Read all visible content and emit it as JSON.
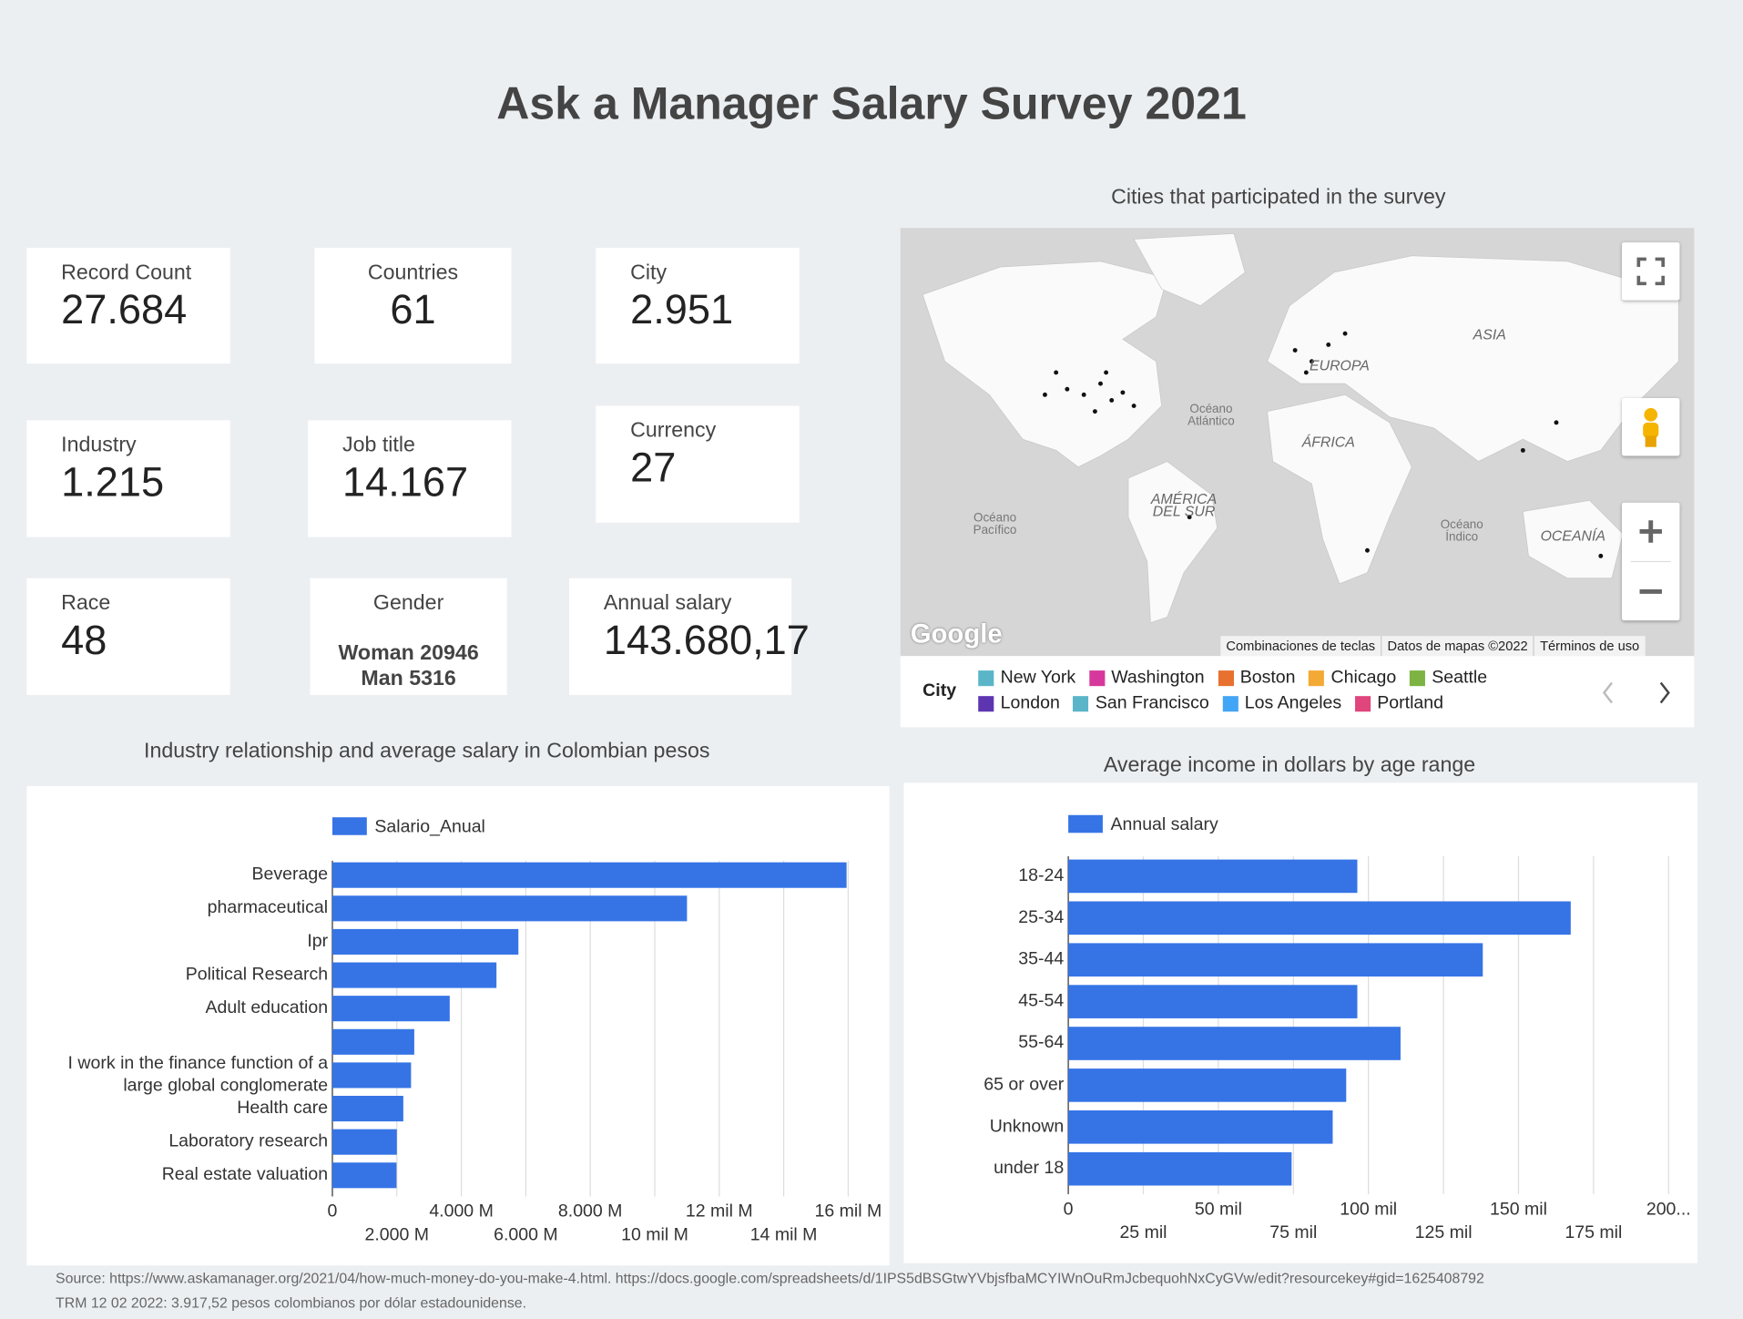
{
  "header": {
    "title": "Ask a Manager Salary Survey 2021"
  },
  "scorecards": [
    {
      "label": "Record Count",
      "value": "27.684"
    },
    {
      "label": "Countries",
      "value": "61"
    },
    {
      "label": "City",
      "value": "2.951"
    },
    {
      "label": "Industry",
      "value": "1.215"
    },
    {
      "label": "Job title",
      "value": "14.167"
    },
    {
      "label": "Currency",
      "value": "27"
    },
    {
      "label": "Race",
      "value": "48"
    },
    {
      "label": "Gender",
      "lines": [
        "Woman 20946",
        "Man 5316"
      ]
    },
    {
      "label": "Annual salary",
      "value": "143.680,17"
    }
  ],
  "map": {
    "title": "Cities that participated in the survey",
    "labels": [
      "ASIA",
      "EUROPA",
      "ÁFRICA",
      "AMÉRICA DEL SUR",
      "Océano Atlántico",
      "Océano Pacífico",
      "Océano Índico",
      "OCEANÍA"
    ],
    "brand": "Google",
    "attribution": [
      "Combinaciones de teclas",
      "Datos de mapas ©2022",
      "Términos de uso"
    ],
    "legend": {
      "title": "City",
      "items": [
        {
          "name": "New York",
          "color": "#5bb5c9"
        },
        {
          "name": "Washington",
          "color": "#d6399b"
        },
        {
          "name": "Boston",
          "color": "#e8712f"
        },
        {
          "name": "Chicago",
          "color": "#f2aa35"
        },
        {
          "name": "Seattle",
          "color": "#7cb342"
        },
        {
          "name": "London",
          "color": "#5e35b1"
        },
        {
          "name": "San Francisco",
          "color": "#5bb5c9"
        },
        {
          "name": "Los Angeles",
          "color": "#42a5f5"
        },
        {
          "name": "Portland",
          "color": "#e0457b"
        }
      ]
    }
  },
  "chart_data": [
    {
      "type": "bar",
      "orientation": "horizontal",
      "title": "Industry relationship and average salary in Colombian pesos",
      "categories": [
        "Beverage",
        "pharmaceutical",
        "Ipr",
        "Political Research",
        "Adult education",
        null,
        "I work in the finance function of a large global conglomerate",
        "Health care",
        "Laboratory research",
        "Real estate valuation"
      ],
      "series": [
        {
          "name": "Salario_Anual",
          "color": "#3674e6",
          "values": [
            15950,
            11000,
            5770,
            5090,
            3640,
            2540,
            2440,
            2200,
            2000,
            1990
          ]
        }
      ],
      "xlim": [
        0,
        17000
      ],
      "xticks": [
        0,
        {
          "value": 2000,
          "label": "2.000 M"
        },
        {
          "value": 4000,
          "label": "4.000 M"
        },
        {
          "value": 6000,
          "label": "6.000 M"
        },
        {
          "value": 8000,
          "label": "8.000 M"
        },
        {
          "value": 10000,
          "label": "10 mil M"
        },
        {
          "value": 12000,
          "label": "12 mil M"
        },
        {
          "value": 14000,
          "label": "14 mil M"
        },
        {
          "value": 16000,
          "label": "16 mil M"
        }
      ],
      "grid": true,
      "legend": "top"
    },
    {
      "type": "bar",
      "orientation": "horizontal",
      "title": "Average income in dollars by age range",
      "categories": [
        "18-24",
        "25-34",
        "35-44",
        "45-54",
        "55-64",
        "65 or over",
        "Unknown",
        "under 18"
      ],
      "series": [
        {
          "name": "Annual salary",
          "color": "#3674e6",
          "values": [
            96300,
            167400,
            138100,
            96300,
            110700,
            92600,
            88100,
            74400
          ]
        }
      ],
      "xlim": [
        0,
        200000
      ],
      "xticks": [
        0,
        {
          "value": 25000,
          "label": "25 mil"
        },
        {
          "value": 50000,
          "label": "50 mil"
        },
        {
          "value": 75000,
          "label": "75 mil"
        },
        {
          "value": 100000,
          "label": "100 mil"
        },
        {
          "value": 125000,
          "label": "125 mil"
        },
        {
          "value": 150000,
          "label": "150 mil"
        },
        {
          "value": 175000,
          "label": "175 mil"
        },
        {
          "value": 200000,
          "label": "200..."
        }
      ],
      "grid": true,
      "legend": "top"
    }
  ],
  "footer": {
    "lines": [
      "Source:  https://www.askamanager.org/2021/04/how-much-money-do-you-make-4.html. https://docs.google.com/spreadsheets/d/1IPS5dBSGtwYVbjsfbaMCYIWnOuRmJcbequohNxCyGVw/edit?resourcekey#gid=1625408792",
      "TRM 12 02 2022: 3.917,52 pesos colombianos por dólar estadounidense."
    ]
  }
}
